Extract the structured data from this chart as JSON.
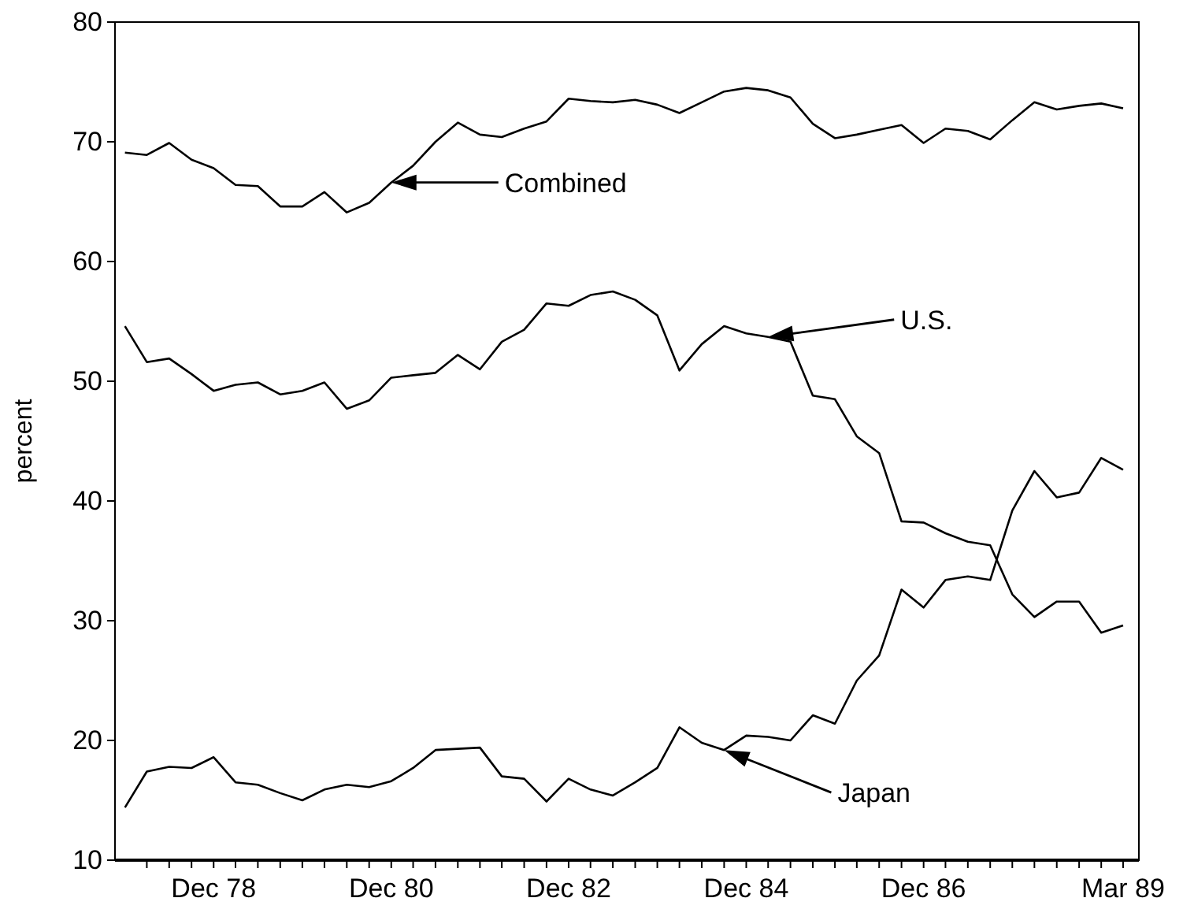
{
  "chart_data": {
    "type": "line",
    "ylabel": "percent",
    "x": [
      "1977-12",
      "1978-03",
      "1978-06",
      "1978-09",
      "1978-12",
      "1979-03",
      "1979-06",
      "1979-09",
      "1979-12",
      "1980-03",
      "1980-06",
      "1980-09",
      "1980-12",
      "1981-03",
      "1981-06",
      "1981-09",
      "1981-12",
      "1982-03",
      "1982-06",
      "1982-09",
      "1982-12",
      "1983-03",
      "1983-06",
      "1983-09",
      "1983-12",
      "1984-03",
      "1984-06",
      "1984-09",
      "1984-12",
      "1985-03",
      "1985-06",
      "1985-09",
      "1985-12",
      "1986-03",
      "1986-06",
      "1986-09",
      "1986-12",
      "1987-03",
      "1987-06",
      "1987-09",
      "1987-12",
      "1988-03",
      "1988-06",
      "1988-09",
      "1988-12",
      "1989-03"
    ],
    "series": [
      {
        "name": "Combined",
        "color": "#000000",
        "values": [
          69.1,
          68.9,
          69.9,
          68.5,
          67.8,
          66.4,
          66.3,
          64.6,
          64.6,
          65.8,
          64.1,
          64.9,
          66.6,
          68.0,
          70.0,
          71.6,
          70.6,
          70.4,
          71.1,
          71.7,
          73.6,
          73.4,
          73.3,
          73.5,
          73.1,
          72.4,
          73.3,
          74.2,
          74.5,
          74.3,
          73.7,
          71.5,
          70.3,
          70.6,
          71.0,
          71.4,
          69.9,
          71.1,
          70.9,
          70.2,
          71.8,
          73.3,
          72.7,
          73.0,
          73.2,
          72.8
        ]
      },
      {
        "name": "U.S.",
        "color": "#000000",
        "values": [
          54.6,
          51.6,
          51.9,
          50.6,
          49.2,
          49.7,
          49.9,
          48.9,
          49.2,
          49.9,
          47.7,
          48.4,
          50.3,
          50.5,
          50.7,
          52.2,
          51.0,
          53.3,
          54.3,
          56.5,
          56.3,
          57.2,
          57.5,
          56.8,
          55.5,
          50.9,
          53.1,
          54.6,
          54.0,
          53.7,
          53.3,
          48.8,
          48.5,
          45.4,
          44.0,
          38.3,
          38.2,
          37.3,
          36.6,
          36.3,
          32.2,
          30.3,
          31.6,
          31.6,
          29.0,
          29.6
        ]
      },
      {
        "name": "Japan",
        "color": "#000000",
        "values": [
          14.4,
          17.4,
          17.8,
          17.7,
          18.6,
          16.5,
          16.3,
          15.6,
          15.0,
          15.9,
          16.3,
          16.1,
          16.6,
          17.7,
          19.2,
          19.3,
          19.4,
          17.0,
          16.8,
          14.9,
          16.8,
          15.9,
          15.4,
          16.5,
          17.7,
          21.1,
          19.8,
          19.2,
          20.4,
          20.3,
          20.0,
          22.1,
          21.4,
          25.0,
          27.1,
          32.6,
          31.1,
          33.4,
          33.7,
          33.4,
          39.2,
          42.5,
          40.3,
          40.7,
          43.6,
          42.6
        ]
      }
    ],
    "xlim": [
      "1977-10-21",
      "1989-05-05"
    ],
    "xticks": [
      {
        "value": "1978-03",
        "label": null
      },
      {
        "value": "1978-06",
        "label": null
      },
      {
        "value": "1978-09",
        "label": null
      },
      {
        "value": "1978-12",
        "label": "Dec 78"
      },
      {
        "value": "1979-03",
        "label": null
      },
      {
        "value": "1979-06",
        "label": null
      },
      {
        "value": "1979-09",
        "label": null
      },
      {
        "value": "1979-12",
        "label": null
      },
      {
        "value": "1980-03",
        "label": null
      },
      {
        "value": "1980-06",
        "label": null
      },
      {
        "value": "1980-09",
        "label": null
      },
      {
        "value": "1980-12",
        "label": "Dec 80"
      },
      {
        "value": "1981-03",
        "label": null
      },
      {
        "value": "1981-06",
        "label": null
      },
      {
        "value": "1981-09",
        "label": null
      },
      {
        "value": "1981-12",
        "label": null
      },
      {
        "value": "1982-03",
        "label": null
      },
      {
        "value": "1982-06",
        "label": null
      },
      {
        "value": "1982-09",
        "label": null
      },
      {
        "value": "1982-12",
        "label": "Dec 82"
      },
      {
        "value": "1983-03",
        "label": null
      },
      {
        "value": "1983-06",
        "label": null
      },
      {
        "value": "1983-09",
        "label": null
      },
      {
        "value": "1983-12",
        "label": null
      },
      {
        "value": "1984-03",
        "label": null
      },
      {
        "value": "1984-06",
        "label": null
      },
      {
        "value": "1984-09",
        "label": null
      },
      {
        "value": "1984-12",
        "label": "Dec 84"
      },
      {
        "value": "1985-03",
        "label": null
      },
      {
        "value": "1985-06",
        "label": null
      },
      {
        "value": "1985-09",
        "label": null
      },
      {
        "value": "1985-12",
        "label": null
      },
      {
        "value": "1986-03",
        "label": null
      },
      {
        "value": "1986-06",
        "label": null
      },
      {
        "value": "1986-09",
        "label": null
      },
      {
        "value": "1986-12",
        "label": "Dec 86"
      },
      {
        "value": "1987-03",
        "label": null
      },
      {
        "value": "1987-06",
        "label": null
      },
      {
        "value": "1987-09",
        "label": null
      },
      {
        "value": "1987-12",
        "label": null
      },
      {
        "value": "1988-03",
        "label": null
      },
      {
        "value": "1988-06",
        "label": null
      },
      {
        "value": "1988-09",
        "label": null
      },
      {
        "value": "1988-12",
        "label": null
      },
      {
        "value": "1989-03",
        "label": "Mar 89"
      }
    ],
    "ylim": [
      10,
      80
    ],
    "yticks": [
      10,
      20,
      30,
      40,
      50,
      60,
      70,
      80
    ],
    "grid": false,
    "legend": "top",
    "marker": "none",
    "line_style": "solid"
  }
}
